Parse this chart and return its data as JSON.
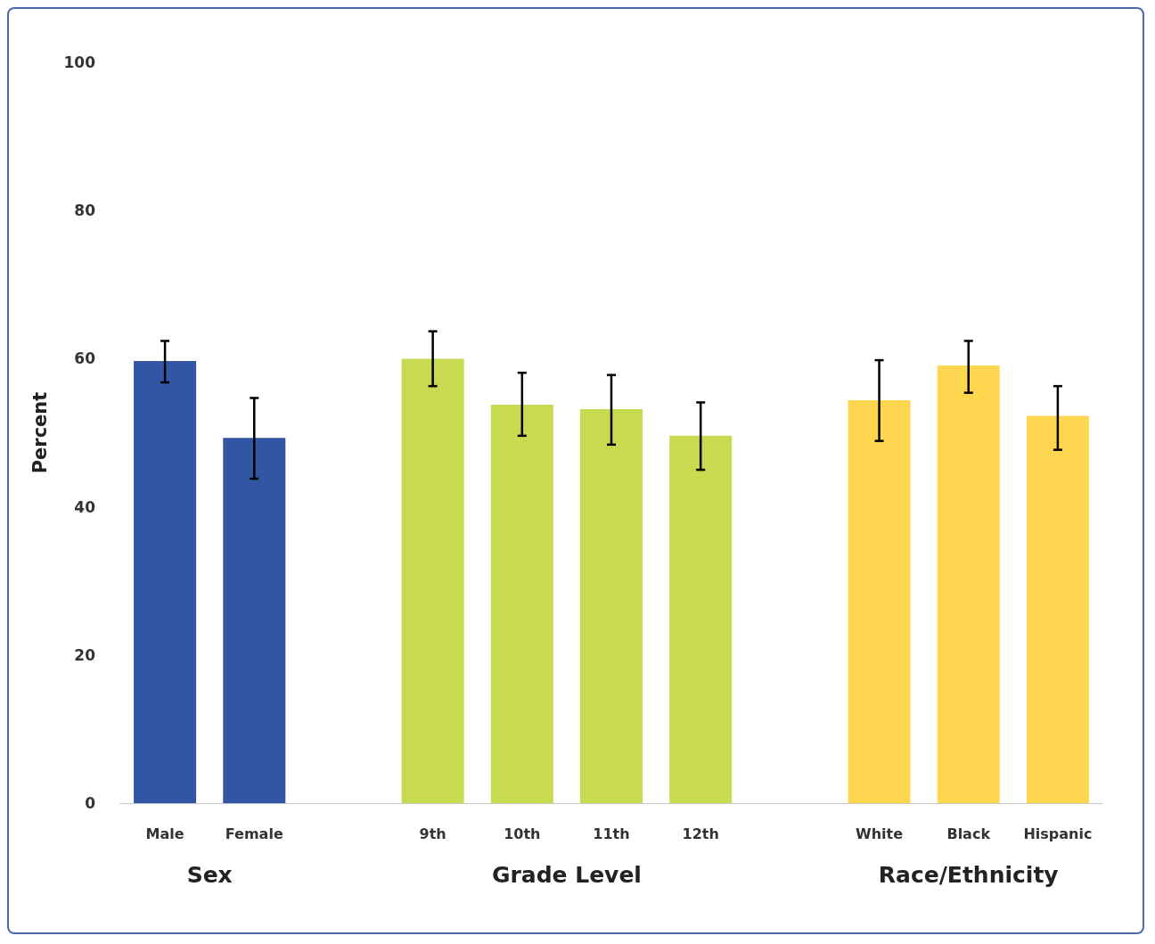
{
  "chart_data": {
    "type": "bar",
    "ylabel": "Percent",
    "categories": [
      "Male",
      "Female",
      null,
      "9th",
      "10th",
      "11th",
      "12th",
      null,
      "White",
      "Black",
      "Hispanic"
    ],
    "values": [
      59.7,
      49.3,
      null,
      60.0,
      53.8,
      53.2,
      49.6,
      null,
      54.4,
      59.1,
      52.3
    ],
    "colors": [
      "#3256a3",
      "#3256a3",
      null,
      "#c8da4f",
      "#c8da4f",
      "#c8da4f",
      "#c8da4f",
      null,
      "#fed64f",
      "#fed64f",
      "#fed64f"
    ],
    "errors": [
      [
        56.8,
        62.4
      ],
      [
        43.8,
        54.7
      ],
      null,
      [
        56.3,
        63.7
      ],
      [
        49.6,
        58.1
      ],
      [
        48.4,
        57.8
      ],
      [
        45.0,
        54.1
      ],
      null,
      [
        48.9,
        59.8
      ],
      [
        55.4,
        62.4
      ],
      [
        47.7,
        56.3
      ]
    ],
    "ylim": [
      0,
      100
    ],
    "yticks": [
      0,
      20,
      40,
      60,
      80,
      100
    ],
    "grid": false,
    "annotations": [
      "Sex",
      "Grade Level",
      "Race/Ethnicity"
    ]
  }
}
